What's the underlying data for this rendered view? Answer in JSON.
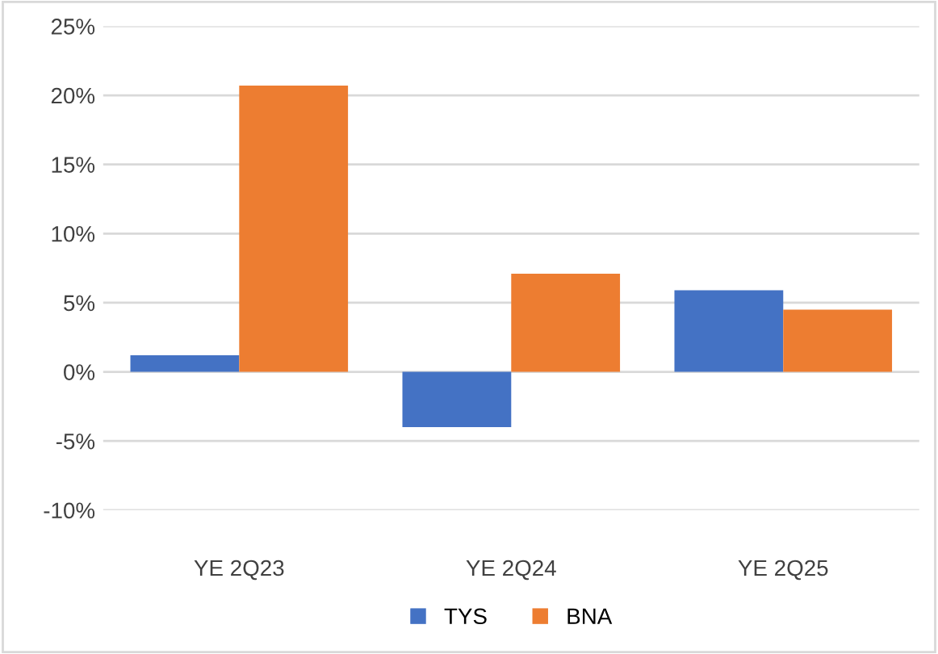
{
  "chart_data": {
    "type": "bar",
    "categories": [
      "YE 2Q23",
      "YE 2Q24",
      "YE 2Q25"
    ],
    "series": [
      {
        "name": "TYS",
        "color": "#4472c4",
        "values": [
          1.2,
          -4.0,
          5.9
        ]
      },
      {
        "name": "BNA",
        "color": "#ed7d31",
        "values": [
          20.7,
          7.1,
          4.5
        ]
      }
    ],
    "ylim": [
      -10,
      25
    ],
    "yticks": [
      {
        "value": -10,
        "label": "-10%"
      },
      {
        "value": -5,
        "label": "-5%"
      },
      {
        "value": 0,
        "label": "0%"
      },
      {
        "value": 5,
        "label": "5%"
      },
      {
        "value": 10,
        "label": "10%"
      },
      {
        "value": 15,
        "label": "15%"
      },
      {
        "value": 20,
        "label": "20%"
      },
      {
        "value": 25,
        "label": "25%"
      }
    ],
    "grid": "y",
    "legend": "bottom"
  }
}
